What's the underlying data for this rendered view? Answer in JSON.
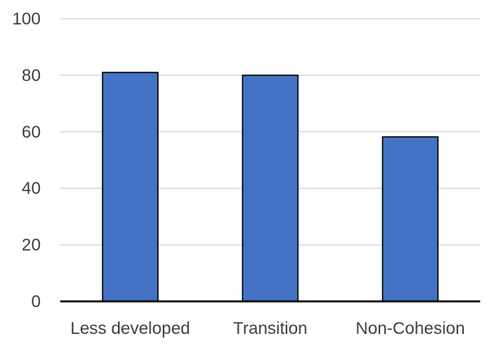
{
  "chart_data": {
    "type": "bar",
    "categories": [
      "Less developed",
      "Transition",
      "Non-Cohesion"
    ],
    "values": [
      81,
      80,
      58.2
    ],
    "title": "",
    "xlabel": "",
    "ylabel": "",
    "ylim": [
      0,
      100
    ],
    "yticks": [
      "0",
      "20",
      "40",
      "60",
      "80",
      "100"
    ],
    "grid": true,
    "legend": "none",
    "colors": {
      "bar_fill": "#4472C4",
      "bar_stroke": "#000000",
      "grid": "#D9D9D9",
      "axis": "#000000",
      "text": "#404040"
    }
  }
}
